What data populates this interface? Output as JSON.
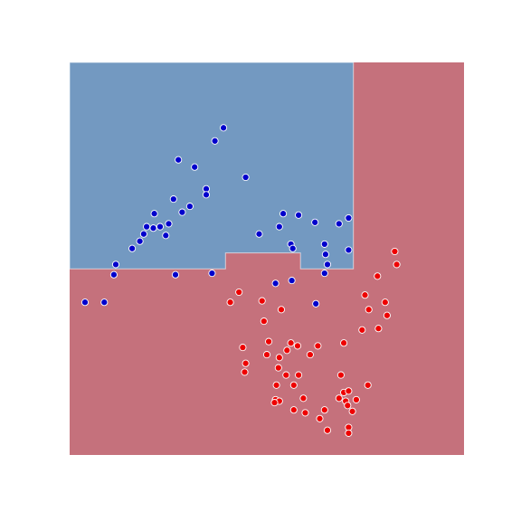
{
  "chart_data": {
    "type": "scatter",
    "title": "",
    "xlabel": "",
    "ylabel": "",
    "xlim": [
      -1.6,
      2.5
    ],
    "ylim": [
      -1.1,
      1.6
    ],
    "grid": false,
    "axes_visible": false,
    "colors": {
      "region_class_0": "#7399c1",
      "region_class_1": "#c5717c",
      "boundary": "#ffffff",
      "point_class_0": "#0000cc",
      "point_class_1": "#ee0000",
      "point_edge": "#ffffff"
    },
    "decision_regions": [
      {
        "class": 0,
        "polygon": [
          [
            -1.6,
            1.6
          ],
          [
            1.35,
            1.6
          ],
          [
            1.35,
            0.18
          ],
          [
            0.8,
            0.18
          ],
          [
            0.8,
            0.29
          ],
          [
            0.6,
            0.29
          ],
          [
            0.6,
            0.29
          ],
          [
            0.02,
            0.29
          ],
          [
            0.02,
            0.18
          ],
          [
            -1.6,
            0.18
          ]
        ]
      }
    ],
    "series": [
      {
        "class": 0,
        "x": [
          -0.47,
          -0.3,
          -0.09,
          0.0,
          0.23,
          -0.35,
          -0.18,
          -0.18,
          -0.52,
          -0.43,
          -0.72,
          -0.73,
          -0.57,
          -0.66,
          -0.6,
          -0.87,
          -0.83,
          -0.8,
          -0.95,
          -1.12,
          -1.14,
          -0.5,
          -0.12,
          0.37,
          0.7,
          0.58,
          0.62,
          0.72,
          0.78,
          0.95,
          1.05,
          1.06,
          1.08,
          1.2,
          1.3,
          1.3,
          1.05,
          0.54,
          0.71,
          -1.44,
          -1.24,
          0.96
        ],
        "y": [
          0.93,
          0.88,
          1.06,
          1.15,
          0.81,
          0.61,
          0.73,
          0.69,
          0.66,
          0.57,
          0.56,
          0.46,
          0.49,
          0.47,
          0.41,
          0.37,
          0.42,
          0.47,
          0.32,
          0.21,
          0.14,
          0.14,
          0.15,
          0.42,
          0.35,
          0.47,
          0.56,
          0.32,
          0.55,
          0.5,
          0.35,
          0.28,
          0.21,
          0.49,
          0.53,
          0.31,
          0.15,
          0.08,
          0.1,
          -0.05,
          -0.05,
          -0.06
        ]
      },
      {
        "class": 1,
        "x": [
          1.47,
          1.51,
          1.6,
          1.44,
          1.25,
          0.98,
          0.77,
          0.7,
          0.66,
          0.9,
          0.58,
          0.57,
          0.23,
          0.22,
          0.07,
          0.16,
          0.2,
          0.45,
          0.65,
          0.78,
          0.73,
          0.55,
          0.54,
          0.58,
          0.53,
          0.73,
          0.85,
          1.05,
          1.0,
          1.08,
          1.3,
          1.3,
          1.2,
          1.25,
          1.27,
          1.29,
          1.34,
          1.5,
          1.22,
          1.3,
          1.38,
          0.83,
          0.4,
          0.42,
          0.47,
          0.6,
          1.61,
          1.68,
          1.7,
          1.78,
          1.8
        ],
        "y": [
          0.0,
          -0.1,
          0.13,
          -0.24,
          -0.33,
          -0.35,
          -0.35,
          -0.33,
          -0.38,
          -0.41,
          -0.43,
          -0.5,
          -0.47,
          -0.53,
          -0.05,
          0.02,
          -0.36,
          -0.41,
          -0.55,
          -0.55,
          -0.62,
          -0.62,
          -0.72,
          -0.73,
          -0.74,
          -0.79,
          -0.81,
          -0.79,
          -0.85,
          -0.93,
          -0.91,
          -0.95,
          -0.71,
          -0.67,
          -0.73,
          -0.76,
          -0.8,
          -0.62,
          -0.55,
          -0.66,
          -0.72,
          -0.71,
          -0.04,
          -0.18,
          -0.32,
          -0.1,
          -0.23,
          -0.05,
          -0.14,
          0.3,
          0.21
        ]
      }
    ]
  }
}
